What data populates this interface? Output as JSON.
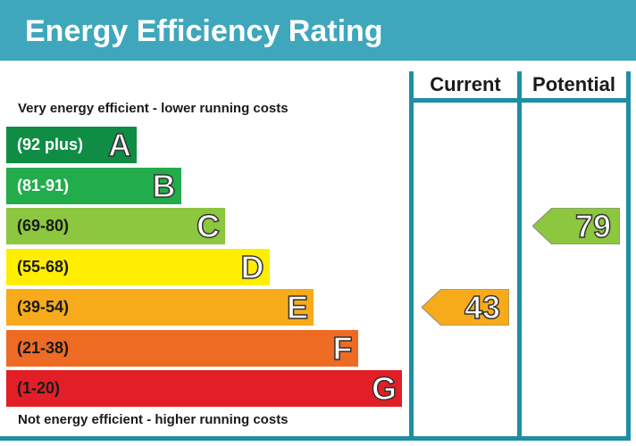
{
  "chart_data": {
    "type": "bar",
    "title": "Energy Efficiency Rating",
    "top_note": "Very energy efficient - lower running costs",
    "bottom_note": "Not energy efficient - higher running costs",
    "column_headers": [
      "Current",
      "Potential"
    ],
    "bands": [
      {
        "letter": "A",
        "range": "(92 plus)",
        "min": 92,
        "max": 100,
        "color": "#0f8d44",
        "dark_text": false
      },
      {
        "letter": "B",
        "range": "(81-91)",
        "min": 81,
        "max": 91,
        "color": "#23ac4b",
        "dark_text": false
      },
      {
        "letter": "C",
        "range": "(69-80)",
        "min": 69,
        "max": 80,
        "color": "#8dc63f",
        "dark_text": true
      },
      {
        "letter": "D",
        "range": "(55-68)",
        "min": 55,
        "max": 68,
        "color": "#ffee00",
        "dark_text": true
      },
      {
        "letter": "E",
        "range": "(39-54)",
        "min": 39,
        "max": 54,
        "color": "#f7ab1b",
        "dark_text": true
      },
      {
        "letter": "F",
        "range": "(21-38)",
        "min": 21,
        "max": 38,
        "color": "#ee6b24",
        "dark_text": true
      },
      {
        "letter": "G",
        "range": "(1-20)",
        "min": 1,
        "max": 20,
        "color": "#e21e26",
        "dark_text": true
      }
    ],
    "current": {
      "value": 43,
      "band": "E",
      "color": "#f7ab1b"
    },
    "potential": {
      "value": 79,
      "band": "C",
      "color": "#8dc63f"
    }
  },
  "colors": {
    "title_bar": "#3fa7bb",
    "border": "#1f8ea4"
  }
}
